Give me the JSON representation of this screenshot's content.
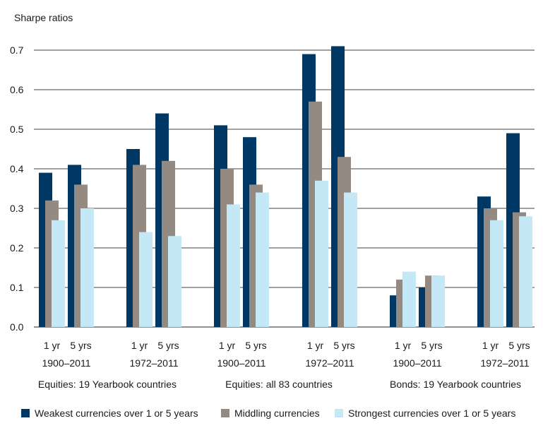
{
  "chart_data": {
    "type": "bar",
    "ylabel": "Sharpe ratios",
    "ylim": [
      0,
      0.7
    ],
    "yticks": [
      "0.0",
      "0.1",
      "0.2",
      "0.3",
      "0.4",
      "0.5",
      "0.6",
      "0.7"
    ],
    "grid": true,
    "legend_position": "bottom",
    "series": [
      {
        "name": "Weakest currencies over 1 or 5 years",
        "color": "#003865"
      },
      {
        "name": "Middling currencies",
        "color": "#958a82"
      },
      {
        "name": "Strongest currencies over 1 or 5 years",
        "color": "#c4e8f5"
      }
    ],
    "groups": [
      {
        "period": "1900–2011",
        "bars": [
          {
            "label": "1 yr",
            "values": [
              0.39,
              0.32,
              0.27
            ]
          },
          {
            "label": "5 yrs",
            "values": [
              0.41,
              0.36,
              0.3
            ]
          }
        ]
      },
      {
        "period": "1972–2011",
        "bars": [
          {
            "label": "1 yr",
            "values": [
              0.45,
              0.41,
              0.24
            ]
          },
          {
            "label": "5 yrs",
            "values": [
              0.54,
              0.42,
              0.23
            ]
          }
        ]
      },
      {
        "period": "1900–2011",
        "bars": [
          {
            "label": "1 yr",
            "values": [
              0.51,
              0.4,
              0.31
            ]
          },
          {
            "label": "5 yrs",
            "values": [
              0.48,
              0.36,
              0.34
            ]
          }
        ]
      },
      {
        "period": "1972–2011",
        "bars": [
          {
            "label": "1 yr",
            "values": [
              0.69,
              0.57,
              0.37
            ]
          },
          {
            "label": "5 yrs",
            "values": [
              0.71,
              0.43,
              0.34
            ]
          }
        ]
      },
      {
        "period": "1900–2011",
        "bars": [
          {
            "label": "1 yr",
            "values": [
              0.08,
              0.12,
              0.14
            ]
          },
          {
            "label": "5 yrs",
            "values": [
              0.1,
              0.13,
              0.13
            ]
          }
        ]
      },
      {
        "period": "1972–2011",
        "bars": [
          {
            "label": "1 yr",
            "values": [
              0.33,
              0.3,
              0.27
            ]
          },
          {
            "label": "5 yrs",
            "values": [
              0.49,
              0.29,
              0.28
            ]
          }
        ]
      }
    ],
    "categories": [
      "Equities: 19 Yearbook countries",
      "Equities: all 83 countries",
      "Bonds: 19 Yearbook countries"
    ]
  }
}
